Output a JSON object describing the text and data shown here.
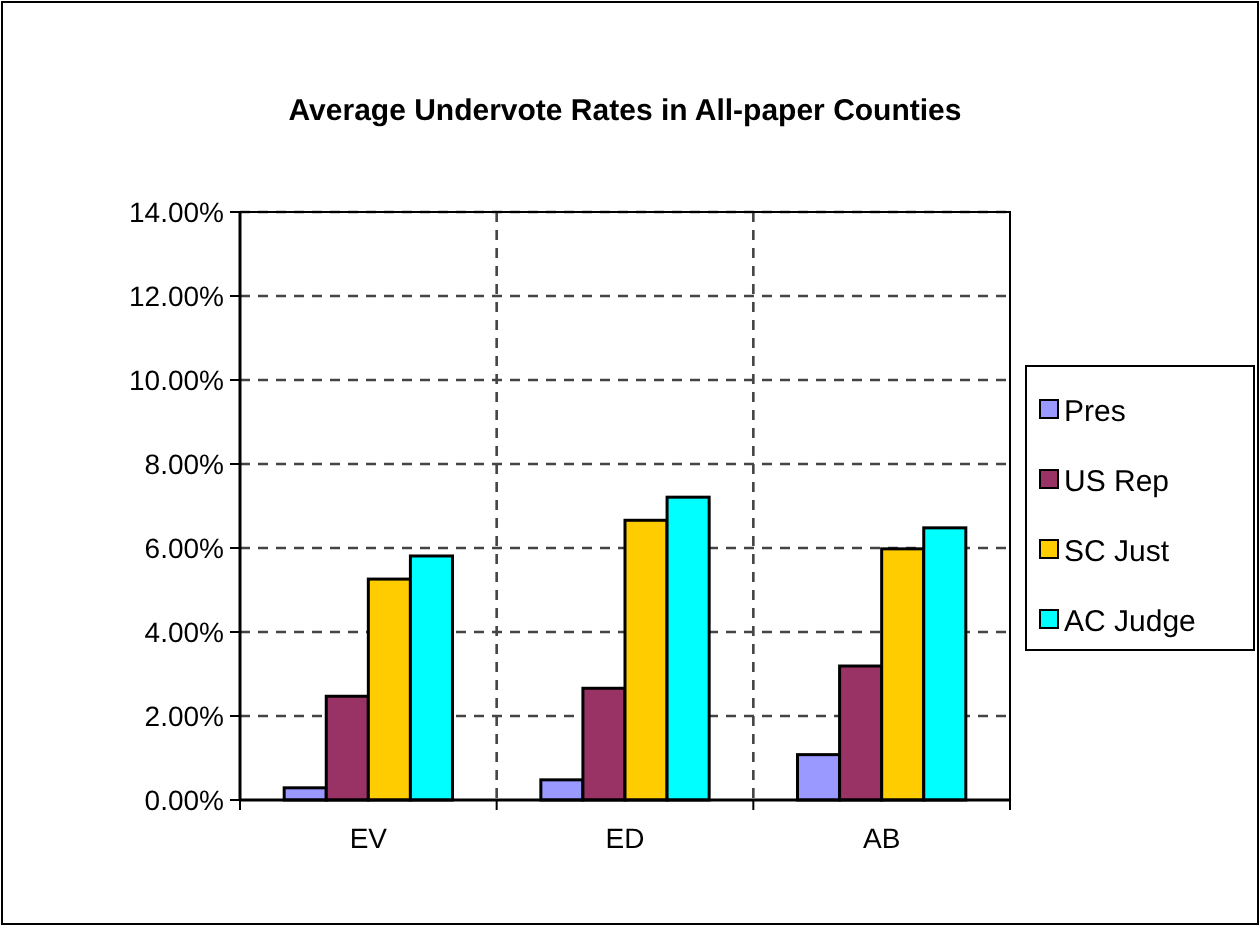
{
  "chart_data": {
    "type": "bar",
    "title": "Average Undervote Rates in All-paper Counties",
    "categories": [
      "EV",
      "ED",
      "AB"
    ],
    "series": [
      {
        "name": "Pres",
        "color": "#9999ff",
        "values": [
          0.29,
          0.48,
          1.08
        ]
      },
      {
        "name": "US Rep",
        "color": "#993366",
        "values": [
          2.47,
          2.66,
          3.19
        ]
      },
      {
        "name": "SC Just",
        "color": "#ffcc00",
        "values": [
          5.26,
          6.66,
          5.98
        ]
      },
      {
        "name": "AC Judge",
        "color": "#00ffff",
        "values": [
          5.81,
          7.21,
          6.48
        ]
      }
    ],
    "ylim": [
      0,
      14
    ],
    "yticks": [
      {
        "value": 0,
        "label": "0.00%"
      },
      {
        "value": 2,
        "label": "2.00%"
      },
      {
        "value": 4,
        "label": "4.00%"
      },
      {
        "value": 6,
        "label": "6.00%"
      },
      {
        "value": 8,
        "label": "8.00%"
      },
      {
        "value": 10,
        "label": "10.00%"
      },
      {
        "value": 12,
        "label": "12.00%"
      },
      {
        "value": 14,
        "label": "14.00%"
      }
    ],
    "grid": true,
    "legend": "right"
  }
}
